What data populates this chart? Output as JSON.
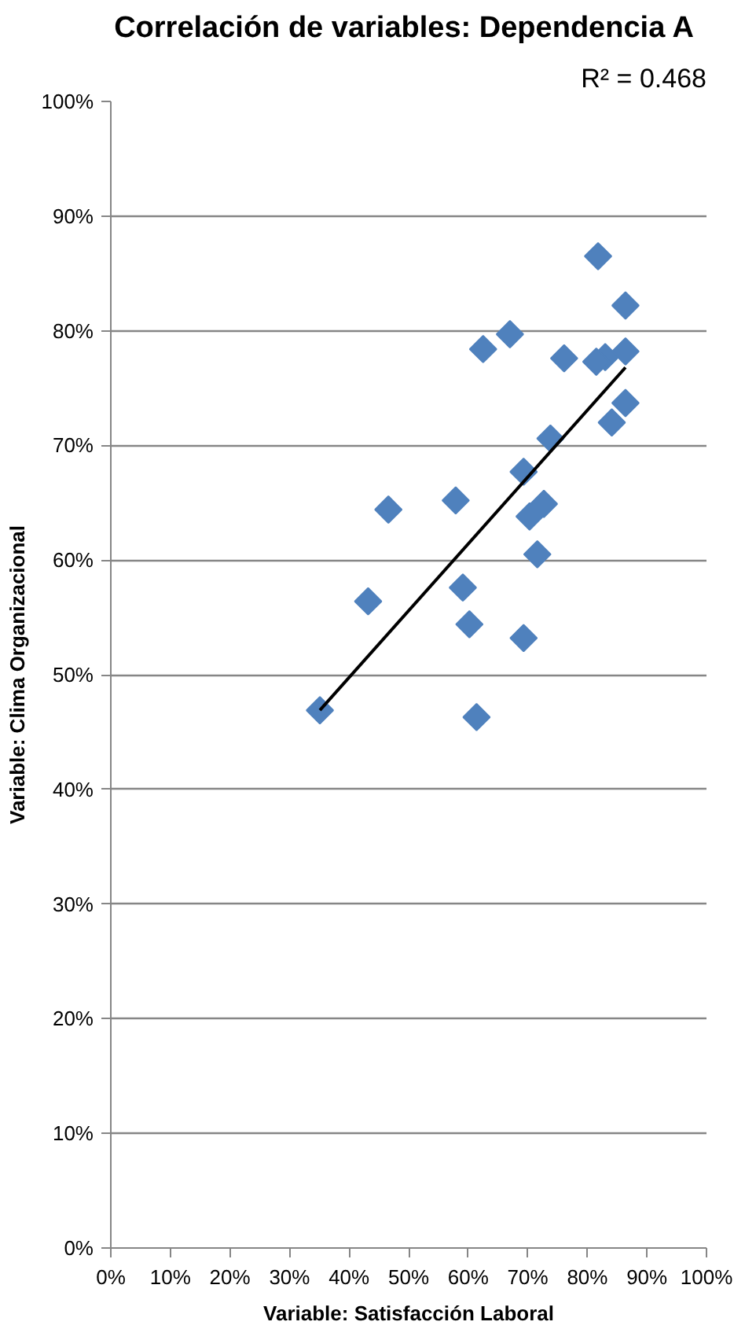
{
  "chart_data": {
    "type": "scatter",
    "title": "Correlación de variables:  Dependencia A",
    "xlabel": "Variable: Satisfacción Laboral",
    "ylabel": "Variable: Clima Organizacional",
    "annotations": [
      "R² = 0.468"
    ],
    "x": [
      0.864,
      0.864,
      0.864,
      0.841,
      0.83,
      0.818,
      0.815,
      0.761,
      0.738,
      0.727,
      0.716,
      0.703,
      0.693,
      0.693,
      0.67,
      0.625,
      0.614,
      0.602,
      0.591,
      0.579,
      0.466,
      0.432,
      0.351
    ],
    "series": [
      {
        "color": "#4f81bd",
        "marker": "diamond",
        "values": [
          0.822,
          0.782,
          0.737,
          0.72,
          0.777,
          0.865,
          0.773,
          0.776,
          0.706,
          0.649,
          0.605,
          0.638,
          0.677,
          0.532,
          0.797,
          0.784,
          0.463,
          0.544,
          0.576,
          0.652,
          0.644,
          0.564,
          0.469
        ]
      },
      {
        "type": "line",
        "color": "#000000",
        "marker": "none",
        "line_style": "solid",
        "x": [
          0.351,
          0.864
        ],
        "values": [
          0.469,
          0.768
        ]
      }
    ],
    "xlim": [
      0,
      1
    ],
    "ylim": [
      0,
      1
    ],
    "xticks": [
      {
        "value": 0,
        "label": "0%"
      },
      {
        "value": 0.1,
        "label": "10%"
      },
      {
        "value": 0.2,
        "label": "20%"
      },
      {
        "value": 0.3,
        "label": "30%"
      },
      {
        "value": 0.4,
        "label": "40%"
      },
      {
        "value": 0.5,
        "label": "50%"
      },
      {
        "value": 0.6,
        "label": "60%"
      },
      {
        "value": 0.7,
        "label": "70%"
      },
      {
        "value": 0.8,
        "label": "80%"
      },
      {
        "value": 0.9,
        "label": "90%"
      },
      {
        "value": 1,
        "label": "100%"
      }
    ],
    "yticks": [
      {
        "value": 0,
        "label": "0%"
      },
      {
        "value": 0.1,
        "label": "10%"
      },
      {
        "value": 0.2,
        "label": "20%"
      },
      {
        "value": 0.3,
        "label": "30%"
      },
      {
        "value": 0.4,
        "label": "40%"
      },
      {
        "value": 0.5,
        "label": "50%"
      },
      {
        "value": 0.6,
        "label": "60%"
      },
      {
        "value": 0.7,
        "label": "70%"
      },
      {
        "value": 0.8,
        "label": "80%"
      },
      {
        "value": 0.9,
        "label": "90%"
      },
      {
        "value": 1,
        "label": "100%"
      }
    ],
    "grid": "y"
  }
}
